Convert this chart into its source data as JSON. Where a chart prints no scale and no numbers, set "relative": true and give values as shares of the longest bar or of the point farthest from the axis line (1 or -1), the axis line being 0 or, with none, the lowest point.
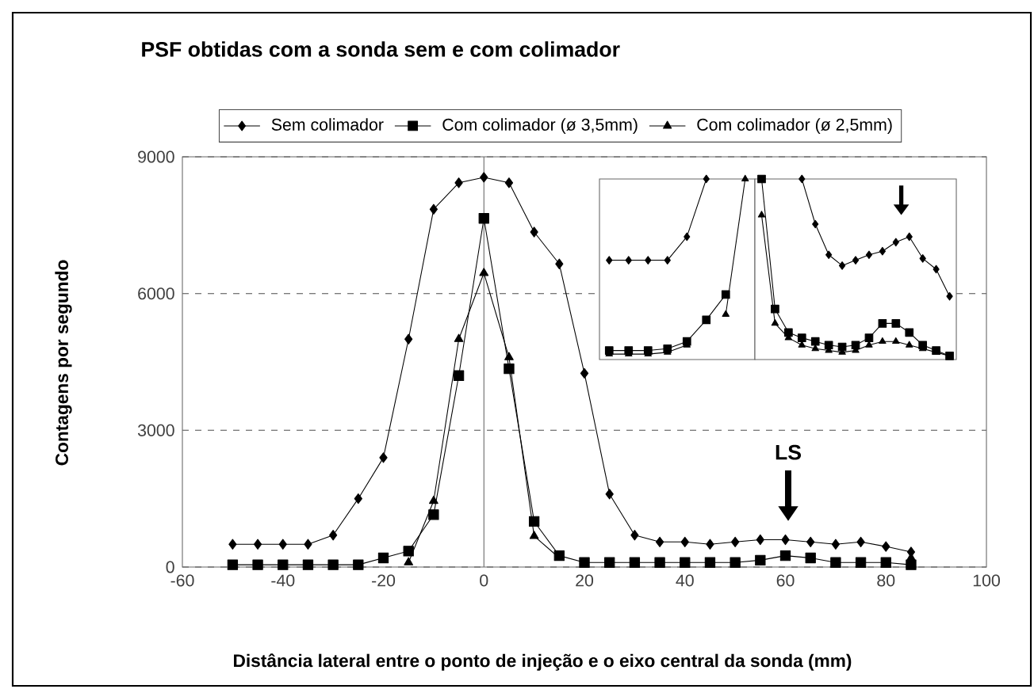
{
  "chart_data": [
    {
      "type": "line",
      "title": "PSF obtidas com a sonda sem  e com colimador",
      "xlabel": "Distância lateral entre o ponto de injeção e o eixo central da sonda (mm)",
      "ylabel": "Contagens por segundo",
      "x": [
        -50,
        -45,
        -40,
        -35,
        -30,
        -25,
        -20,
        -15,
        -10,
        -5,
        0,
        5,
        10,
        15,
        20,
        25,
        30,
        35,
        40,
        45,
        50,
        55,
        60,
        65,
        70,
        75,
        80,
        85
      ],
      "series": [
        {
          "name": "Sem colimador",
          "color": "#000000",
          "marker": "diamond",
          "values": [
            500,
            500,
            500,
            500,
            700,
            1500,
            2400,
            5000,
            7850,
            8430,
            8550,
            8430,
            7350,
            6650,
            4250,
            1600,
            700,
            550,
            550,
            500,
            550,
            600,
            600,
            550,
            500,
            550,
            450,
            330
          ]
        },
        {
          "name": "Com colimador (ø 3,5mm)",
          "color": "#000000",
          "marker": "square",
          "values": [
            50,
            50,
            50,
            50,
            50,
            50,
            200,
            350,
            1150,
            4200,
            7650,
            4350,
            1000,
            250,
            100,
            100,
            100,
            100,
            100,
            100,
            100,
            150,
            250,
            200,
            100,
            100,
            100,
            50
          ]
        },
        {
          "name": "Com colimador (ø 2,5mm)",
          "color": "#000000",
          "marker": "triangle",
          "values": [
            null,
            null,
            null,
            null,
            null,
            null,
            null,
            100,
            1450,
            5000,
            6450,
            4600,
            680,
            200,
            null,
            null,
            null,
            null,
            null,
            null,
            null,
            null,
            null,
            null,
            null,
            null,
            null,
            200
          ]
        }
      ],
      "xlim": [
        -60,
        100
      ],
      "xticks": [
        -60,
        -40,
        -20,
        0,
        20,
        40,
        60,
        80,
        100
      ],
      "ylim": [
        0,
        9000
      ],
      "yticks": [
        0,
        3000,
        6000,
        9000
      ],
      "grid": "y",
      "legend": "top",
      "ref_lines": [
        {
          "axis": "x",
          "value": 0
        }
      ],
      "annotations": [
        "LS"
      ]
    },
    {
      "type": "line",
      "relative": true,
      "categories": [
        null,
        null,
        null,
        null,
        null,
        null,
        null,
        null
      ],
      "series": [
        {
          "color": "#000000",
          "marker": "diamond",
          "values": [
            0.55,
            0.55,
            0.55,
            0.55,
            0.68,
            1,
            null,
            null
          ]
        },
        {
          "color": "#000000",
          "marker": "square",
          "values": [
            0.05,
            0.05,
            0.05,
            0.06,
            0.1,
            0.22,
            0.36,
            null
          ]
        },
        {
          "color": "#000000",
          "marker": "triangle",
          "values": [
            0.03,
            0.03,
            0.03,
            0.04,
            0.08,
            null,
            0.25,
            1
          ]
        }
      ]
    },
    {
      "type": "line",
      "relative": true,
      "categories": [
        null,
        null,
        null,
        null,
        null,
        null,
        null,
        null,
        null,
        null,
        null,
        null,
        null,
        null,
        null
      ],
      "series": [
        {
          "color": "#000000",
          "marker": "diamond",
          "values": [
            null,
            null,
            null,
            1,
            0.75,
            0.58,
            0.52,
            0.55,
            0.58,
            0.6,
            0.65,
            0.68,
            0.56,
            0.5,
            0.35
          ]
        },
        {
          "color": "#000000",
          "marker": "square",
          "values": [
            1,
            0.28,
            0.15,
            0.12,
            0.1,
            0.08,
            0.07,
            0.08,
            0.12,
            0.2,
            0.2,
            0.15,
            0.08,
            0.05,
            0.02
          ]
        },
        {
          "color": "#000000",
          "marker": "triangle",
          "values": [
            0.8,
            0.2,
            0.12,
            0.08,
            0.06,
            0.05,
            0.04,
            0.05,
            0.08,
            0.1,
            0.1,
            0.08,
            0.06,
            0.04,
            0.02
          ]
        }
      ]
    }
  ]
}
